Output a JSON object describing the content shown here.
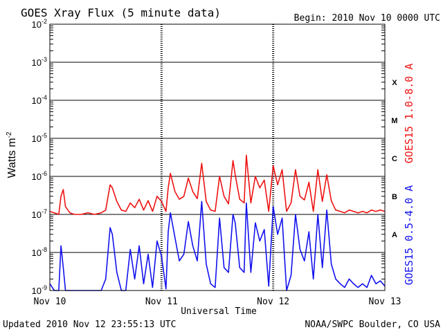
{
  "chart_data": {
    "type": "line",
    "title": "GOES Xray Flux (5 minute data)",
    "begin_label": "Begin:  2010 Nov 10 0000 UTC",
    "xlabel": "Universal Time",
    "ylabel": "Watts m",
    "ylabel_superscript": "-2",
    "footer_left": "Updated 2010 Nov 12 23:55:13 UTC",
    "footer_right": "NOAA/SWPC Boulder, CO USA",
    "y_scale": "log",
    "ylim": [
      1e-09,
      0.01
    ],
    "y_ticks": [
      {
        "value": 0.01,
        "base": "10",
        "exp": "-2"
      },
      {
        "value": 0.001,
        "base": "10",
        "exp": "-3"
      },
      {
        "value": 0.0001,
        "base": "10",
        "exp": "-4"
      },
      {
        "value": 1e-05,
        "base": "10",
        "exp": "-5"
      },
      {
        "value": 1e-06,
        "base": "10",
        "exp": "-6"
      },
      {
        "value": 1e-07,
        "base": "10",
        "exp": "-7"
      },
      {
        "value": 1e-08,
        "base": "10",
        "exp": "-8"
      },
      {
        "value": 1e-09,
        "base": "10",
        "exp": "-9"
      }
    ],
    "x_unit": "days since Nov 10 0000 UTC",
    "xlim": [
      0,
      3
    ],
    "x_ticks": [
      {
        "value": 0,
        "label": "Nov 10"
      },
      {
        "value": 1,
        "label": "Nov 11"
      },
      {
        "value": 2,
        "label": "Nov 12"
      },
      {
        "value": 3,
        "label": "Nov 13"
      }
    ],
    "flare_classes": [
      {
        "label": "X",
        "value": 0.00031
      },
      {
        "label": "M",
        "value": 3.1e-05
      },
      {
        "label": "C",
        "value": 3.1e-06
      },
      {
        "label": "B",
        "value": 3.1e-07
      },
      {
        "label": "A",
        "value": 3.1e-08
      }
    ],
    "grid": true,
    "series": [
      {
        "name": "GOES15 1.0-8.0 A",
        "color": "#ee1111",
        "x": [
          0.0,
          0.04,
          0.08,
          0.1,
          0.12,
          0.14,
          0.18,
          0.22,
          0.28,
          0.34,
          0.4,
          0.46,
          0.5,
          0.54,
          0.56,
          0.6,
          0.64,
          0.68,
          0.72,
          0.76,
          0.8,
          0.84,
          0.88,
          0.92,
          0.96,
          1.0,
          1.04,
          1.06,
          1.08,
          1.12,
          1.16,
          1.2,
          1.24,
          1.28,
          1.32,
          1.36,
          1.4,
          1.44,
          1.48,
          1.52,
          1.56,
          1.6,
          1.64,
          1.66,
          1.7,
          1.74,
          1.76,
          1.8,
          1.84,
          1.88,
          1.92,
          1.96,
          2.0,
          2.04,
          2.08,
          2.12,
          2.16,
          2.2,
          2.24,
          2.28,
          2.32,
          2.36,
          2.4,
          2.44,
          2.48,
          2.52,
          2.56,
          2.6,
          2.64,
          2.68,
          2.72,
          2.76,
          2.8,
          2.84,
          2.88,
          2.92,
          2.96,
          3.0
        ],
        "values": [
          1.2e-07,
          1.1e-07,
          1e-07,
          3e-07,
          4.5e-07,
          1.6e-07,
          1.1e-07,
          1e-07,
          1e-07,
          1.1e-07,
          1e-07,
          1.1e-07,
          1.3e-07,
          6e-07,
          5e-07,
          2.2e-07,
          1.3e-07,
          1.2e-07,
          2e-07,
          1.5e-07,
          2.5e-07,
          1.3e-07,
          2.3e-07,
          1.2e-07,
          3e-07,
          2.2e-07,
          1.2e-07,
          5e-07,
          1.2e-06,
          4e-07,
          2.5e-07,
          3e-07,
          9e-07,
          4e-07,
          2.6e-07,
          2.2e-06,
          2.2e-07,
          1.3e-07,
          1.2e-07,
          1e-06,
          3e-07,
          1.9e-07,
          2.6e-06,
          1.1e-06,
          2.5e-07,
          2e-07,
          3.6e-06,
          2e-07,
          1e-06,
          5e-07,
          8e-07,
          1.2e-07,
          1.9e-06,
          6e-07,
          1.5e-06,
          1.2e-07,
          2e-07,
          1.5e-06,
          3e-07,
          2.4e-07,
          7e-07,
          1.2e-07,
          1.5e-06,
          2.2e-07,
          1.1e-06,
          2.3e-07,
          1.3e-07,
          1.2e-07,
          1.1e-07,
          1.3e-07,
          1.2e-07,
          1.1e-07,
          1.2e-07,
          1.1e-07,
          1.3e-07,
          1.2e-07,
          1.3e-07,
          1.2e-07
        ]
      },
      {
        "name": "GOES15 0.5-4.0 A",
        "color": "#1111ee",
        "x": [
          0.0,
          0.04,
          0.08,
          0.1,
          0.12,
          0.14,
          0.18,
          0.22,
          0.28,
          0.34,
          0.4,
          0.46,
          0.5,
          0.54,
          0.56,
          0.6,
          0.64,
          0.68,
          0.72,
          0.76,
          0.8,
          0.84,
          0.88,
          0.92,
          0.96,
          1.0,
          1.04,
          1.06,
          1.08,
          1.12,
          1.16,
          1.2,
          1.24,
          1.28,
          1.32,
          1.36,
          1.4,
          1.44,
          1.48,
          1.52,
          1.56,
          1.6,
          1.64,
          1.66,
          1.7,
          1.74,
          1.76,
          1.8,
          1.84,
          1.88,
          1.92,
          1.96,
          2.0,
          2.04,
          2.08,
          2.12,
          2.16,
          2.2,
          2.24,
          2.28,
          2.32,
          2.36,
          2.4,
          2.44,
          2.48,
          2.52,
          2.56,
          2.6,
          2.64,
          2.68,
          2.72,
          2.76,
          2.8,
          2.84,
          2.88,
          2.92,
          2.96,
          3.0
        ],
        "values": [
          1.5e-09,
          1e-09,
          1e-09,
          1.5e-08,
          4e-09,
          1e-09,
          1e-09,
          1e-09,
          1e-09,
          1e-09,
          1e-09,
          1e-09,
          2e-09,
          4.5e-08,
          3e-08,
          3e-09,
          1e-09,
          1e-09,
          1.2e-08,
          2e-09,
          1.5e-08,
          1.5e-09,
          9e-09,
          1.2e-09,
          2e-08,
          8e-09,
          1.1e-09,
          3.5e-08,
          1.1e-07,
          2.5e-08,
          6e-09,
          9e-09,
          6.5e-08,
          1.5e-08,
          6e-09,
          2.2e-07,
          5e-09,
          1.5e-09,
          1.2e-09,
          8e-08,
          4e-09,
          3e-09,
          1e-07,
          6e-08,
          4e-09,
          3e-09,
          2e-07,
          3e-09,
          6e-08,
          2e-08,
          4e-08,
          1.3e-09,
          1.6e-07,
          3e-08,
          8e-08,
          1e-09,
          2.5e-09,
          1e-07,
          1.2e-08,
          6e-09,
          3.5e-08,
          2e-09,
          1e-07,
          4e-09,
          1.3e-07,
          5e-09,
          2e-09,
          1.5e-09,
          1.2e-09,
          2e-09,
          1.5e-09,
          1.2e-09,
          1.5e-09,
          1.2e-09,
          2.5e-09,
          1.5e-09,
          1.8e-09,
          1.3e-09
        ]
      }
    ]
  }
}
